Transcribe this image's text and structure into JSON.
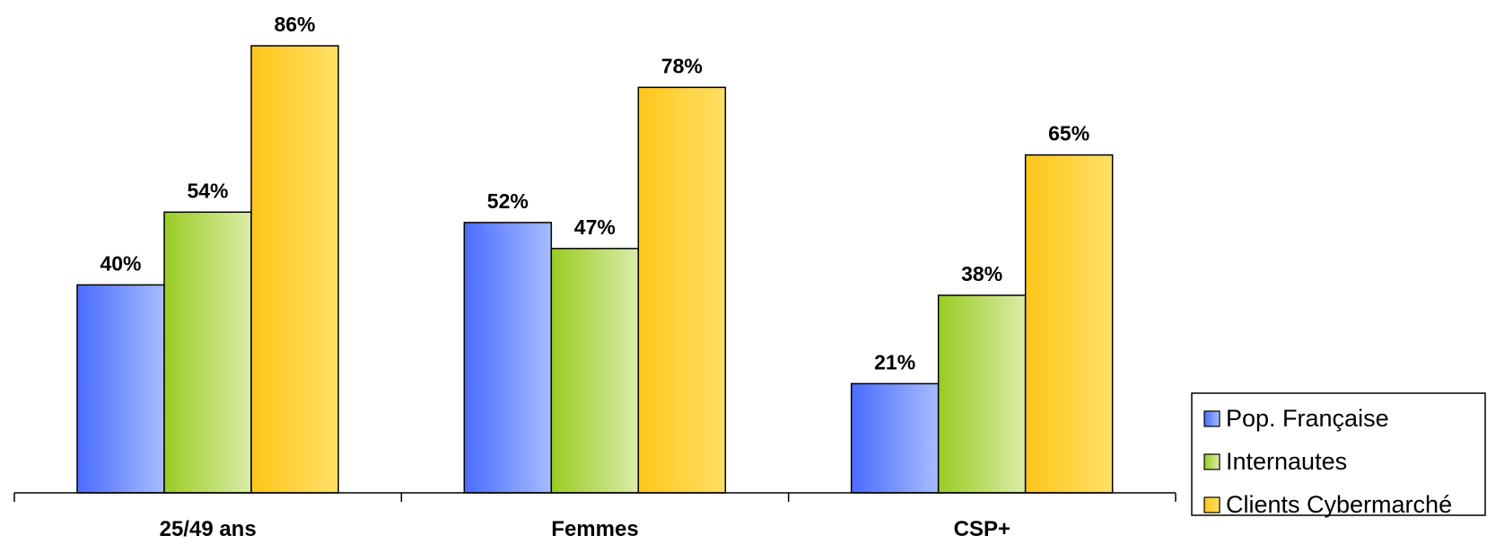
{
  "chart_data": {
    "type": "bar",
    "categories": [
      "25/49 ans",
      "Femmes",
      "CSP+"
    ],
    "series": [
      {
        "name": "Pop. Française",
        "values": [
          40,
          52,
          21
        ],
        "labels": [
          "40%",
          "52%",
          "21%"
        ],
        "color": "#4a6cff",
        "color_light": "#a6bcff"
      },
      {
        "name": "Internautes",
        "values": [
          54,
          47,
          38
        ],
        "labels": [
          "54%",
          "47%",
          "38%"
        ],
        "color": "#99cc22",
        "color_light": "#dcecaa"
      },
      {
        "name": "Clients Cybermarché",
        "values": [
          86,
          78,
          65
        ],
        "labels": [
          "86%",
          "78%",
          "65%"
        ],
        "color": "#ffc61a",
        "color_light": "#ffdf66"
      }
    ],
    "ylim": [
      0,
      100
    ],
    "unit": "%",
    "grid": false,
    "legend": "bottom-right"
  }
}
